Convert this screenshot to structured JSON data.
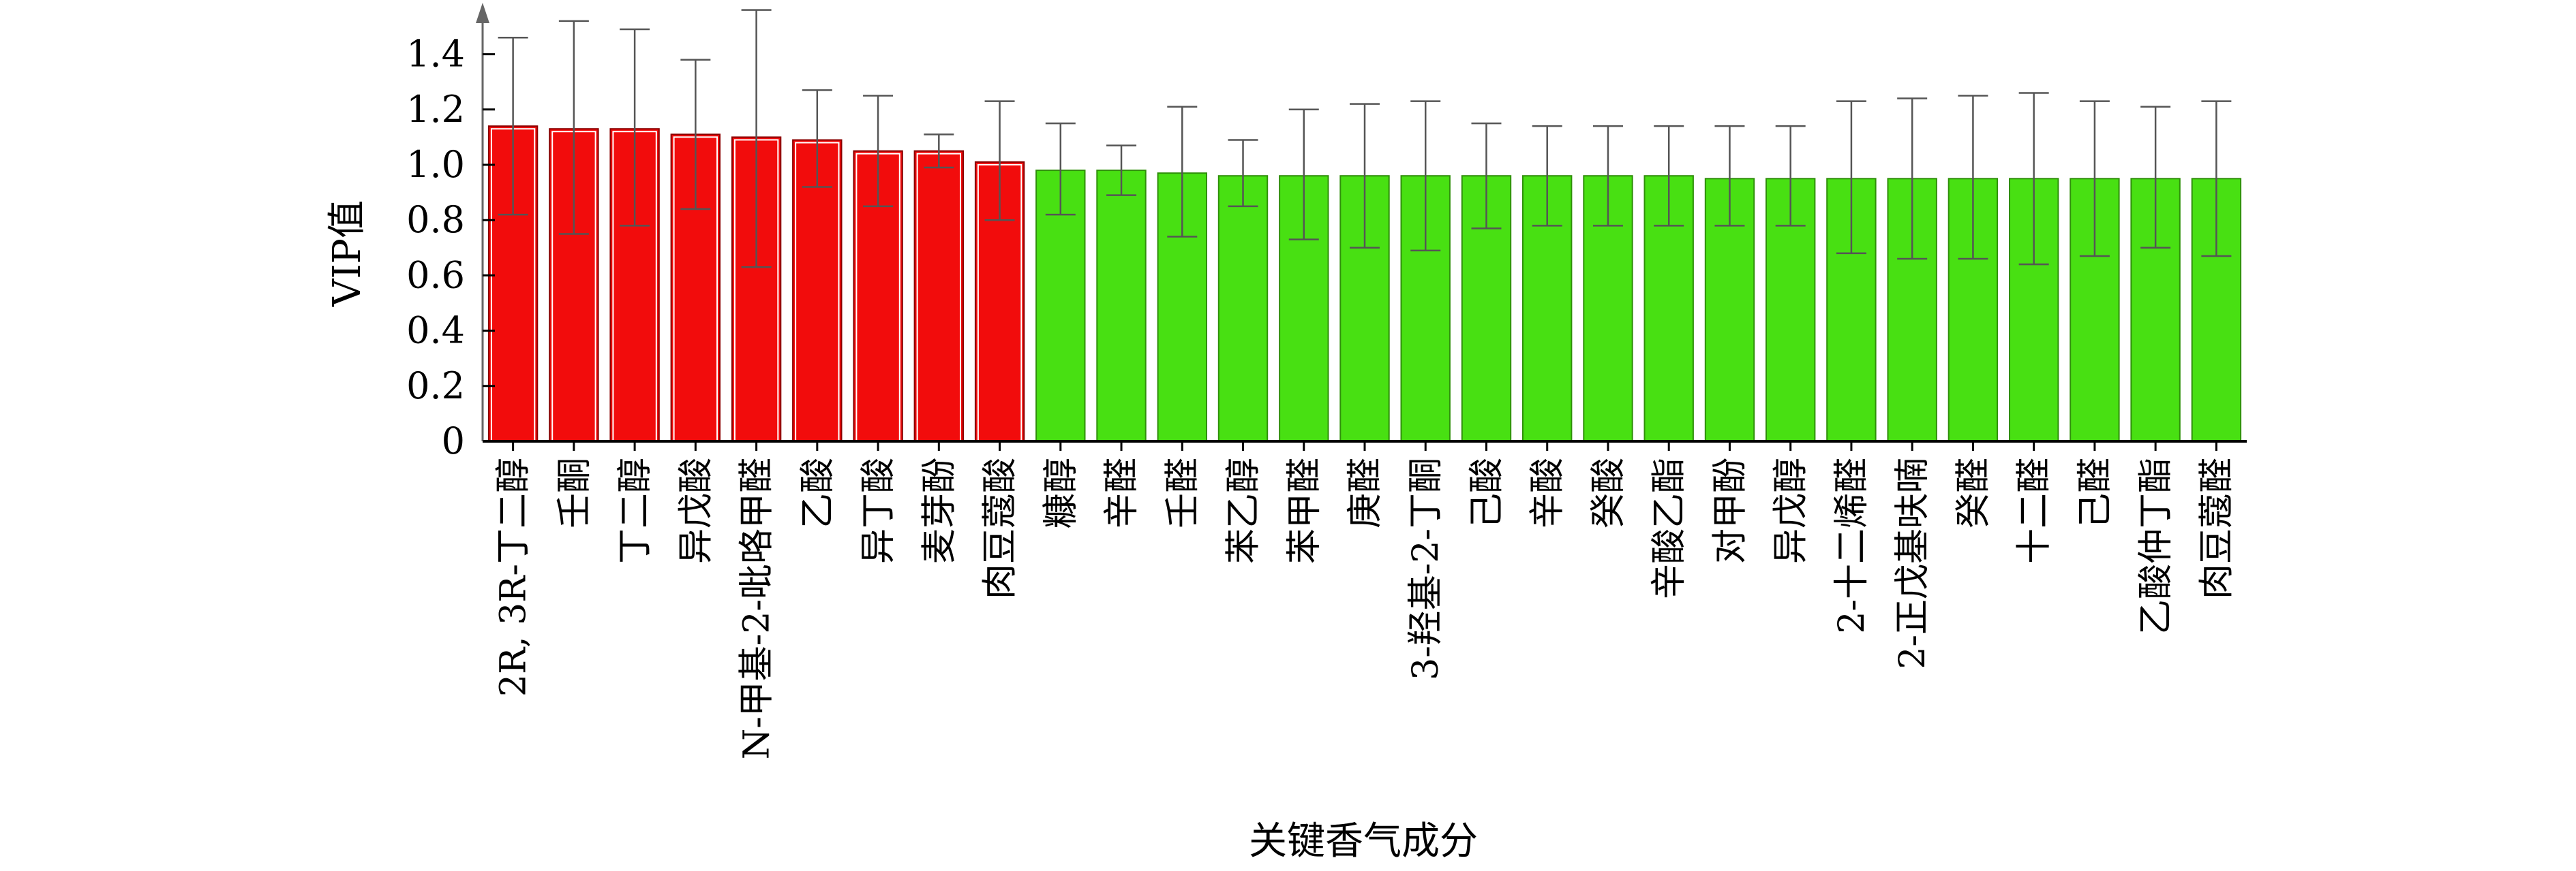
{
  "chart_data": {
    "type": "bar",
    "title": "",
    "xlabel": "关键香气成分",
    "ylabel": "VIP值",
    "ylim": [
      0,
      1.6
    ],
    "yticks": [
      "0",
      "0.2",
      "0.4",
      "0.6",
      "0.8",
      "1.0",
      "1.2",
      "1.4"
    ],
    "grid": false,
    "categories": [
      "2R, 3R-丁二醇",
      "壬酮",
      "丁二醇",
      "异戊酸",
      "N-甲基-2-吡咯甲醛",
      "乙酸",
      "异丁酸",
      "麦芽酚",
      "肉豆蔻酸",
      "糠醇",
      "辛醛",
      "壬醛",
      "苯乙醇",
      "苯甲醛",
      "庚醛",
      "3-羟基-2-丁酮",
      "己酸",
      "辛酸",
      "癸酸",
      "辛酸乙酯",
      "对甲酚",
      "异戊醇",
      "2-十二烯醛",
      "2-正戊基呋喃",
      "癸醛",
      "十二醛",
      "己醛",
      "乙酸仲丁酯",
      "肉豆蔻醛"
    ],
    "values": [
      1.14,
      1.13,
      1.13,
      1.11,
      1.1,
      1.09,
      1.05,
      1.05,
      1.01,
      0.98,
      0.98,
      0.97,
      0.96,
      0.96,
      0.96,
      0.96,
      0.96,
      0.96,
      0.96,
      0.96,
      0.95,
      0.95,
      0.95,
      0.95,
      0.95,
      0.95,
      0.95,
      0.95,
      0.95
    ],
    "error_upper": [
      1.46,
      1.52,
      1.49,
      1.38,
      1.56,
      1.27,
      1.25,
      1.11,
      1.23,
      1.15,
      1.07,
      1.21,
      1.09,
      1.2,
      1.22,
      1.23,
      1.15,
      1.14,
      1.14,
      1.14,
      1.14,
      1.14,
      1.23,
      1.24,
      1.25,
      1.26,
      1.23,
      1.21,
      1.23
    ],
    "error_lower": [
      0.82,
      0.75,
      0.78,
      0.84,
      0.63,
      0.92,
      0.85,
      0.99,
      0.8,
      0.82,
      0.89,
      0.74,
      0.85,
      0.73,
      0.7,
      0.69,
      0.77,
      0.78,
      0.78,
      0.78,
      0.78,
      0.78,
      0.68,
      0.66,
      0.66,
      0.64,
      0.67,
      0.7,
      0.67
    ],
    "bar_colors": {
      "high": "#f20c0c",
      "low": "#48e012"
    },
    "high_count": 9
  }
}
